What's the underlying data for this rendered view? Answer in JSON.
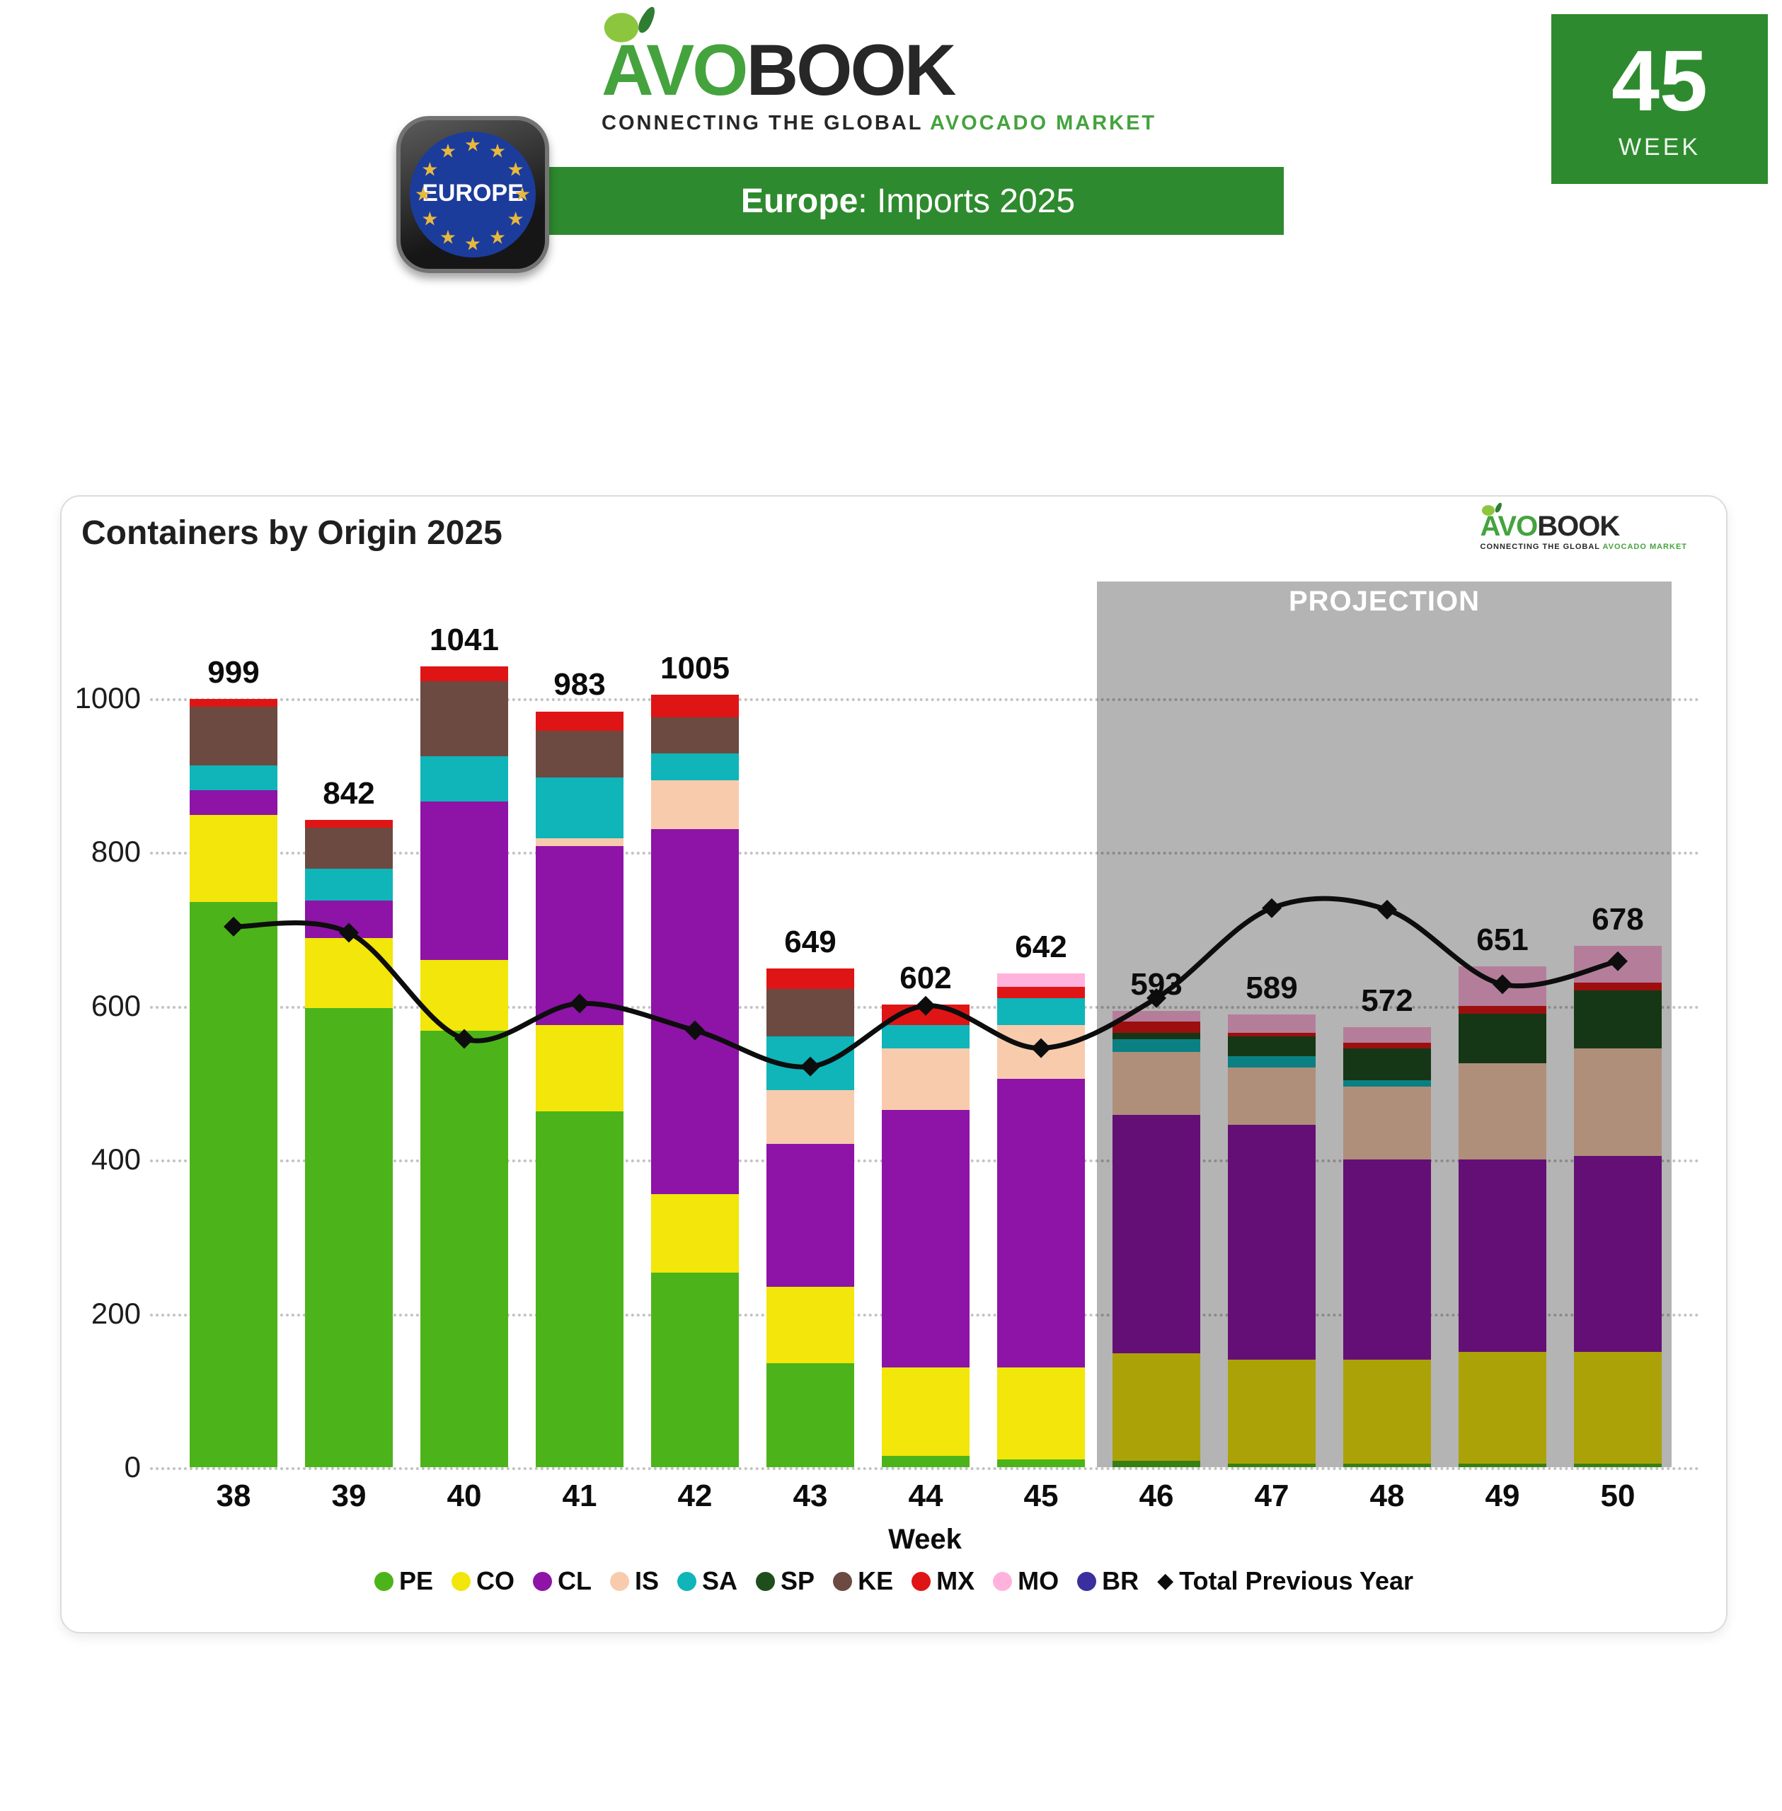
{
  "header": {
    "logo": {
      "brand_green": "AVO",
      "brand_dark": "BOOK",
      "tagline_dark": "CONNECTING THE GLOBAL ",
      "tagline_green": "AVOCADO MARKET"
    },
    "region_badge": {
      "label": "EUROPE"
    },
    "banner": {
      "region": "Europe",
      "rest": ": Imports 2025"
    },
    "week_badge": {
      "number": "45",
      "label": "WEEK"
    }
  },
  "chart_card": {
    "title": "Containers by Origin 2025",
    "projection_label": "PROJECTION"
  },
  "chart_data": {
    "type": "bar",
    "subtype": "stacked-bar-with-line",
    "title": "Containers by Origin 2025",
    "xlabel": "Week",
    "ylabel": "",
    "categories": [
      38,
      39,
      40,
      41,
      42,
      43,
      44,
      45,
      46,
      47,
      48,
      49,
      50
    ],
    "yticks": [
      0,
      200,
      400,
      600,
      800,
      1000
    ],
    "ylim": [
      0,
      1160
    ],
    "grid": true,
    "legend_position": "bottom",
    "totals": [
      999,
      842,
      1041,
      983,
      1005,
      649,
      602,
      642,
      593,
      589,
      572,
      651,
      678
    ],
    "series": [
      {
        "name": "PE",
        "color": "#4CB41A",
        "values": [
          735,
          597,
          568,
          463,
          253,
          135,
          15,
          10,
          8,
          5,
          5,
          5,
          5
        ]
      },
      {
        "name": "CO",
        "color": "#F2E60A",
        "values": [
          113,
          91,
          92,
          112,
          102,
          100,
          115,
          120,
          140,
          135,
          135,
          145,
          145
        ]
      },
      {
        "name": "CL",
        "color": "#8D14A6",
        "values": [
          32,
          49,
          206,
          233,
          475,
          185,
          335,
          375,
          310,
          305,
          260,
          250,
          255
        ]
      },
      {
        "name": "IS",
        "color": "#F8CBAD",
        "values": [
          0,
          0,
          0,
          10,
          63,
          70,
          80,
          70,
          82,
          75,
          95,
          125,
          140
        ]
      },
      {
        "name": "SA",
        "color": "#0FB5B9",
        "values": [
          33,
          41,
          59,
          79,
          35,
          70,
          30,
          35,
          17,
          15,
          8,
          0,
          0
        ]
      },
      {
        "name": "SP",
        "color": "#1F4E1D",
        "values": [
          0,
          0,
          0,
          0,
          0,
          0,
          0,
          0,
          8,
          25,
          42,
          65,
          75
        ]
      },
      {
        "name": "KE",
        "color": "#6C4A41",
        "values": [
          76,
          54,
          97,
          61,
          47,
          62,
          0,
          0,
          0,
          0,
          0,
          0,
          0
        ]
      },
      {
        "name": "MX",
        "color": "#DF1515",
        "values": [
          10,
          10,
          19,
          25,
          30,
          27,
          27,
          15,
          15,
          5,
          7,
          10,
          10
        ]
      },
      {
        "name": "MO",
        "color": "#FFB3DC",
        "values": [
          0,
          0,
          0,
          0,
          0,
          0,
          0,
          17,
          13,
          24,
          20,
          51,
          48
        ]
      },
      {
        "name": "BR",
        "color": "#3B2FA0",
        "values": [
          0,
          0,
          0,
          0,
          0,
          0,
          0,
          0,
          0,
          0,
          0,
          0,
          0
        ]
      }
    ],
    "line_series": {
      "name": "Total Previous Year",
      "color": "#0D0D0D",
      "values": [
        703,
        695,
        557,
        603,
        568,
        521,
        600,
        545,
        610,
        727,
        725,
        628,
        658
      ]
    },
    "projection": {
      "label": "PROJECTION",
      "start_category": 46,
      "overlay_color": "#B4B4B4"
    }
  }
}
